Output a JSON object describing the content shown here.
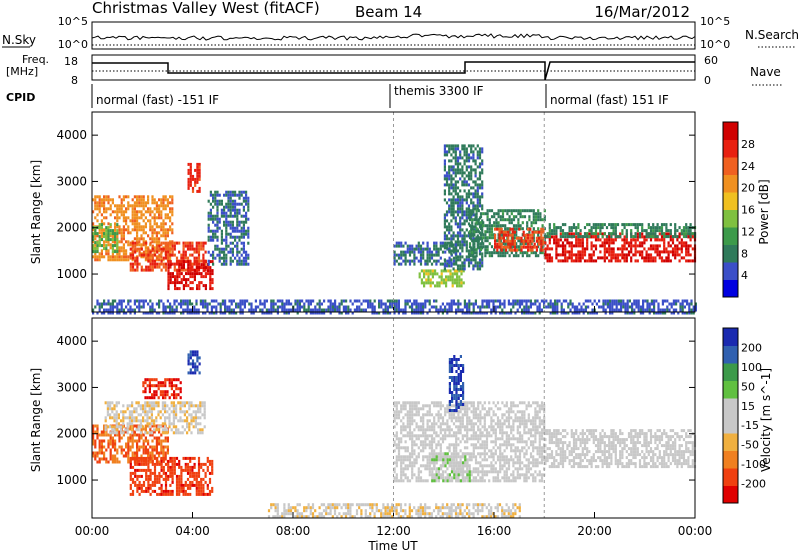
{
  "header": {
    "station": "Christmas Valley West (fitACF)",
    "beam": "Beam 14",
    "date": "16/Mar/2012"
  },
  "top_panels": {
    "nsky_label": "N.Sky",
    "nsearch_label": "N.Search",
    "nsky_ticks": [
      "10^5",
      "10^0"
    ],
    "nsearch_ticks": [
      "10^5",
      "10^0"
    ],
    "freq_label": "Freq.",
    "freq_unit": "[MHz]",
    "freq_ticks": [
      "18",
      "8"
    ],
    "nave_label": "Nave",
    "nave_ticks": [
      "60",
      "0"
    ],
    "cpid_label": "CPID",
    "cpid_segments": [
      {
        "label": "normal (fast) -151 IF",
        "start": 0,
        "end": 12
      },
      {
        "label": "themis 3300 IF",
        "start": 12,
        "end": 18
      },
      {
        "label": "normal (fast) 151 IF",
        "start": 18,
        "end": 24
      }
    ]
  },
  "colors": {
    "power_scale": [
      "#0000e0",
      "#3b4fc8",
      "#2f7a5a",
      "#3c9a4a",
      "#7fc040",
      "#f0c020",
      "#f09020",
      "#f06020",
      "#e82010",
      "#d00000"
    ],
    "velocity_scale": [
      "#e00000",
      "#f04010",
      "#f08020",
      "#f0b040",
      "#c8c8c8",
      "#c8c8c8",
      "#60c040",
      "#3c9a4a",
      "#3060b0",
      "#1a2ab0"
    ]
  },
  "chart_data": [
    {
      "type": "heatmap",
      "ylabel": "Slant Range [km]",
      "xlabel": "Time UT",
      "x_ticks": [
        "00:00",
        "04:00",
        "08:00",
        "12:00",
        "16:00",
        "20:00",
        "00:00"
      ],
      "x_range_hours": [
        0,
        24
      ],
      "y_ticks": [
        1000,
        2000,
        3000,
        4000
      ],
      "y_range_km": [
        180,
        4500
      ],
      "colorbar_label": "Power [dB]",
      "colorbar_ticks": [
        "28",
        "24",
        "20",
        "16",
        "12",
        "8",
        "4"
      ],
      "colorbar_range": [
        0,
        30
      ],
      "regions": [
        {
          "t0": 0.0,
          "t1": 3.2,
          "r0": 1300,
          "r1": 2700,
          "value": 20
        },
        {
          "t0": 0.0,
          "t1": 1.0,
          "r0": 1500,
          "r1": 2100,
          "value": 12
        },
        {
          "t0": 1.5,
          "t1": 4.5,
          "r0": 1100,
          "r1": 1700,
          "value": 24
        },
        {
          "t0": 3.0,
          "t1": 4.8,
          "r0": 700,
          "r1": 1300,
          "value": 27
        },
        {
          "t0": 3.8,
          "t1": 4.3,
          "r0": 2800,
          "r1": 3400,
          "value": 25
        },
        {
          "t0": 4.6,
          "t1": 6.2,
          "r0": 1200,
          "r1": 2800,
          "value": 6
        },
        {
          "t0": 12.0,
          "t1": 14.5,
          "r0": 1200,
          "r1": 1700,
          "value": 6
        },
        {
          "t0": 13.0,
          "t1": 14.8,
          "r0": 750,
          "r1": 1100,
          "value": 14
        },
        {
          "t0": 14.0,
          "t1": 15.5,
          "r0": 1100,
          "r1": 3800,
          "value": 7
        },
        {
          "t0": 15.0,
          "t1": 18.0,
          "r0": 1400,
          "r1": 2400,
          "value": 8
        },
        {
          "t0": 16.0,
          "t1": 18.0,
          "r0": 1500,
          "r1": 2000,
          "value": 24
        },
        {
          "t0": 18.0,
          "t1": 24.0,
          "r0": 1300,
          "r1": 1900,
          "value": 27
        },
        {
          "t0": 18.0,
          "t1": 24.0,
          "r0": 1800,
          "r1": 2100,
          "value": 8
        },
        {
          "t0": 0.0,
          "t1": 24.0,
          "r0": 180,
          "r1": 450,
          "value": 5
        }
      ]
    },
    {
      "type": "heatmap",
      "ylabel": "Slant Range [km]",
      "xlabel": "Time UT",
      "x_ticks": [
        "00:00",
        "04:00",
        "08:00",
        "12:00",
        "16:00",
        "20:00",
        "00:00"
      ],
      "x_range_hours": [
        0,
        24
      ],
      "y_ticks": [
        1000,
        2000,
        3000,
        4000
      ],
      "y_range_km": [
        180,
        4500
      ],
      "colorbar_label": "Velocity [m s^-1]",
      "colorbar_ticks": [
        "200",
        "100",
        "50",
        "15",
        "-15",
        "-50",
        "-100",
        "-200"
      ],
      "colorbar_range": [
        -250,
        250
      ],
      "regions": [
        {
          "t0": 0.0,
          "t1": 3.0,
          "r0": 1400,
          "r1": 2200,
          "value": -150
        },
        {
          "t0": 0.5,
          "t1": 4.5,
          "r0": 2000,
          "r1": 2700,
          "value": -40
        },
        {
          "t0": 1.5,
          "t1": 4.8,
          "r0": 700,
          "r1": 1500,
          "value": -180
        },
        {
          "t0": 3.8,
          "t1": 4.3,
          "r0": 3300,
          "r1": 3800,
          "value": 200
        },
        {
          "t0": 2.0,
          "t1": 3.5,
          "r0": 2800,
          "r1": 3200,
          "value": -200
        },
        {
          "t0": 12.0,
          "t1": 18.0,
          "r0": 1000,
          "r1": 2700,
          "value": 0
        },
        {
          "t0": 13.5,
          "t1": 15.0,
          "r0": 1000,
          "r1": 1600,
          "value": 40
        },
        {
          "t0": 14.2,
          "t1": 14.8,
          "r0": 2500,
          "r1": 3700,
          "value": 200
        },
        {
          "t0": 18.0,
          "t1": 24.0,
          "r0": 1300,
          "r1": 2100,
          "value": 0
        },
        {
          "t0": 7.0,
          "t1": 17.0,
          "r0": 200,
          "r1": 500,
          "value": -40
        }
      ]
    }
  ]
}
